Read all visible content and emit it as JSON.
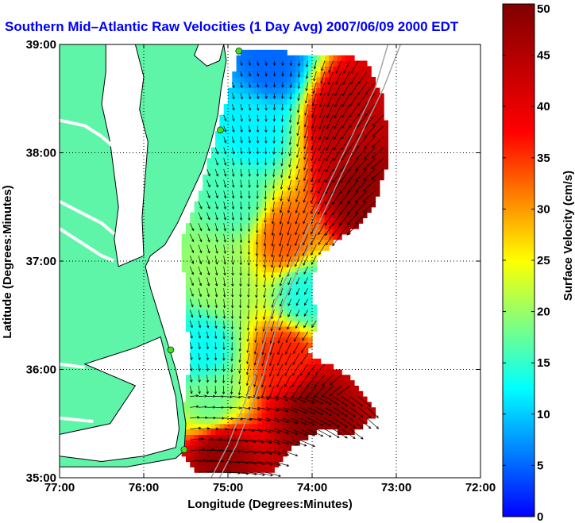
{
  "colors": {
    "title": "#0000ff",
    "land": "#5ff5a9",
    "water_background": "#ffffff",
    "coastline": "#000000",
    "grid": "#000000",
    "isobath": "#a0a0a0",
    "site_marker": "#44dd22"
  },
  "chart_data": {
    "type": "heatmap",
    "title": "Southern Mid–Atlantic Raw Velocities (1 Day Avg) 2007/06/09 2000 EDT",
    "xlabel": "Longitude (Degrees:Minutes)",
    "ylabel": "Latitude (Degrees:Minutes)",
    "xlim": [
      -77,
      -72
    ],
    "ylim": [
      35,
      39
    ],
    "x_ticks": [
      -77,
      -76,
      -75,
      -74,
      -73,
      -72
    ],
    "x_tick_labels": [
      "77:00",
      "76:00",
      "75:00",
      "74:00",
      "73:00",
      "72:00"
    ],
    "y_ticks": [
      35,
      36,
      37,
      38,
      39
    ],
    "y_tick_labels": [
      "35:00",
      "36:00",
      "37:00",
      "38:00",
      "39:00"
    ],
    "grid": true,
    "grid_style": "dotted",
    "colorbar": {
      "label": "Surface Velocity (cm/s)",
      "min": 0,
      "max": 50,
      "ticks": [
        0,
        5,
        10,
        15,
        20,
        25,
        30,
        35,
        40,
        45,
        50
      ],
      "tick_labels": [
        "0",
        "5",
        "10",
        "15",
        "20",
        "25",
        "30",
        "35",
        "40",
        "45",
        "50"
      ],
      "colormap": "jet",
      "levels": 50
    },
    "hf_radar_sites": [
      {
        "lon": -74.87,
        "lat": 38.94
      },
      {
        "lon": -75.09,
        "lat": 38.21
      },
      {
        "lon": -75.68,
        "lat": 36.18
      },
      {
        "lon": -75.52,
        "lat": 35.26
      }
    ],
    "velocity_field": {
      "units": "cm/s",
      "grid_spacing_deg": 0.1,
      "description_of_regions": [
        {
          "lon": -74.5,
          "lat": 38.85,
          "speed": 5
        },
        {
          "lon": -74.7,
          "lat": 38.2,
          "speed": 12
        },
        {
          "lon": -74.9,
          "lat": 37.6,
          "speed": 16
        },
        {
          "lon": -75.1,
          "lat": 36.8,
          "speed": 20
        },
        {
          "lon": -75.3,
          "lat": 36.2,
          "speed": 13
        },
        {
          "lon": -75.2,
          "lat": 35.7,
          "speed": 18
        },
        {
          "lon": -73.6,
          "lat": 38.3,
          "speed": 44
        },
        {
          "lon": -73.4,
          "lat": 37.6,
          "speed": 48
        },
        {
          "lon": -74.3,
          "lat": 37.2,
          "speed": 33
        },
        {
          "lon": -74.1,
          "lat": 36.7,
          "speed": 14
        },
        {
          "lon": -74.3,
          "lat": 36.1,
          "speed": 36
        },
        {
          "lon": -74.0,
          "lat": 35.6,
          "speed": 49
        },
        {
          "lon": -75.1,
          "lat": 35.2,
          "speed": 48
        }
      ]
    }
  }
}
